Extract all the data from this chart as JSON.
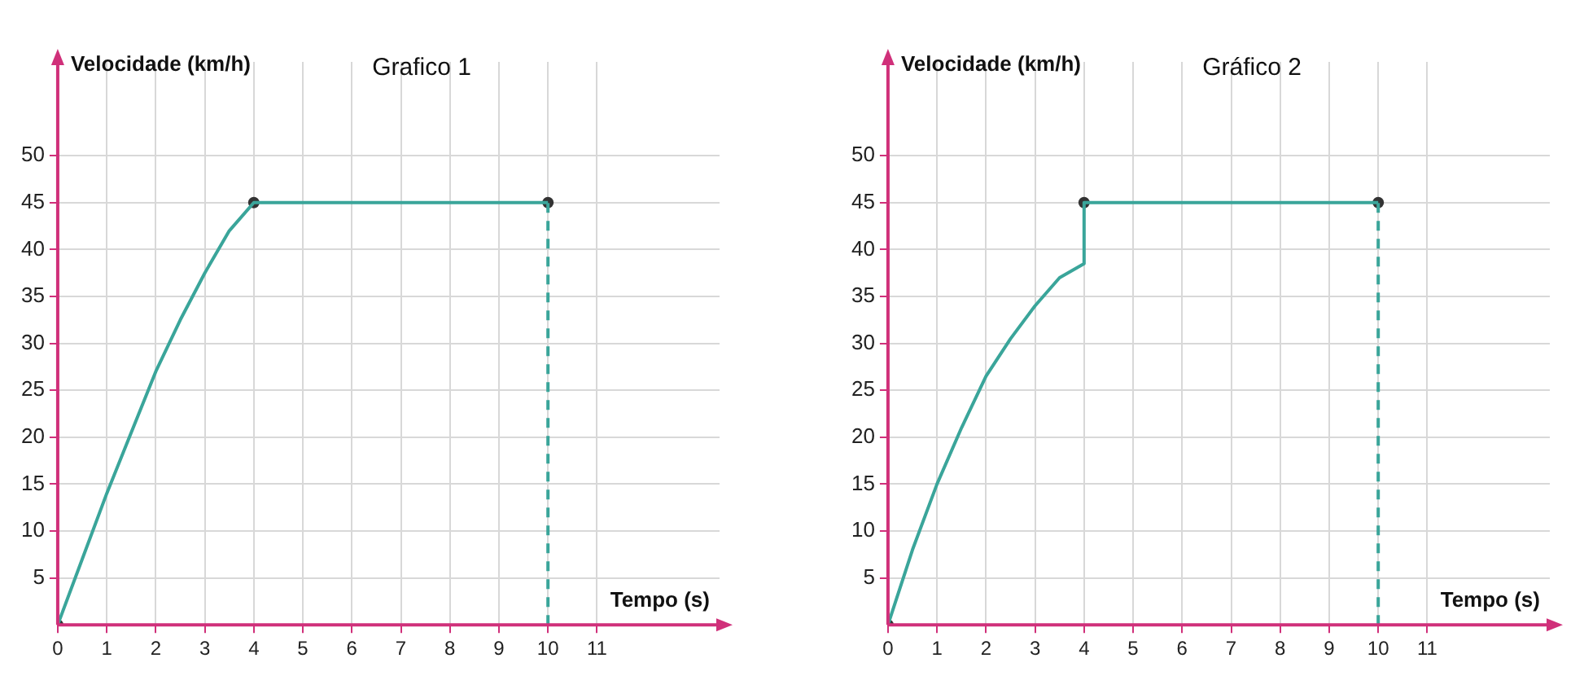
{
  "chart_data": [
    {
      "type": "line",
      "title": "Grafico 1",
      "xlabel": "Tempo (s)",
      "ylabel": "Velocidade (km/h)",
      "xlim": [
        0,
        13.5
      ],
      "ylim": [
        0,
        60
      ],
      "xticks": [
        0,
        1,
        2,
        3,
        4,
        5,
        6,
        7,
        8,
        9,
        10,
        11
      ],
      "yticks": [
        5,
        10,
        15,
        20,
        25,
        30,
        35,
        40,
        45,
        50
      ],
      "grid": true,
      "series": [
        {
          "color": "#3aa59a",
          "marker": "none",
          "x": [
            0,
            0.5,
            1,
            1.5,
            2,
            2.5,
            3,
            3.5,
            4,
            10
          ],
          "values": [
            0,
            7,
            14,
            20.5,
            27,
            32.5,
            37.5,
            42,
            45,
            45
          ]
        },
        {
          "color": "#3aa59a",
          "marker": "none",
          "line_style": "dashed",
          "x": [
            10,
            10
          ],
          "values": [
            0,
            45
          ]
        },
        {
          "type": "scatter",
          "color": "#333333",
          "marker": "circle",
          "x": [
            0,
            4,
            10
          ],
          "values": [
            0,
            45,
            45
          ]
        }
      ]
    },
    {
      "type": "line",
      "title": "Gráfico 2",
      "xlabel": "Tempo (s)",
      "ylabel": "Velocidade (km/h)",
      "xlim": [
        0,
        13.5
      ],
      "ylim": [
        0,
        60
      ],
      "xticks": [
        0,
        1,
        2,
        3,
        4,
        5,
        6,
        7,
        8,
        9,
        10,
        11
      ],
      "yticks": [
        5,
        10,
        15,
        20,
        25,
        30,
        35,
        40,
        45,
        50
      ],
      "grid": true,
      "series": [
        {
          "color": "#3aa59a",
          "marker": "none",
          "x": [
            0,
            0.5,
            1,
            1.5,
            2,
            2.5,
            3,
            3.5,
            4,
            4,
            10
          ],
          "values": [
            0,
            8,
            15,
            21,
            26.5,
            30.5,
            34,
            37,
            38.5,
            45,
            45
          ]
        },
        {
          "color": "#3aa59a",
          "marker": "none",
          "line_style": "dashed",
          "x": [
            10,
            10
          ],
          "values": [
            0,
            45
          ]
        },
        {
          "type": "scatter",
          "color": "#333333",
          "marker": "circle",
          "x": [
            0,
            4,
            10
          ],
          "values": [
            0,
            45,
            45
          ]
        }
      ]
    }
  ]
}
